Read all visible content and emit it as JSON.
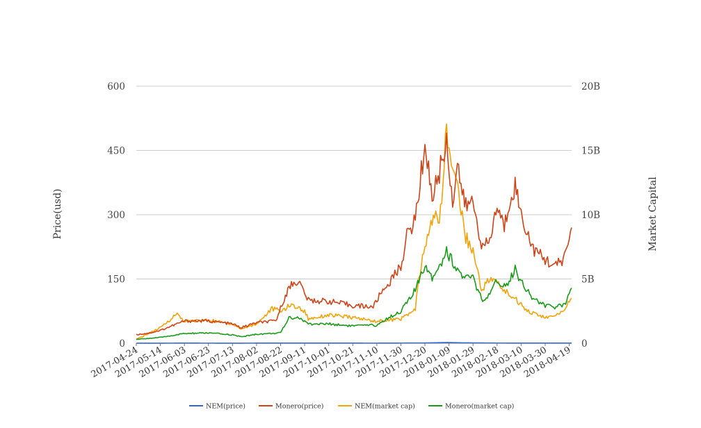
{
  "chart_data": {
    "type": "line",
    "y_left_label": "Price(usd)",
    "y_right_label": "Market Capital",
    "y_left_ticks": [
      "0",
      "150",
      "300",
      "450",
      "600"
    ],
    "y_right_ticks": [
      "0",
      "5B",
      "10B",
      "15B",
      "20B"
    ],
    "ylim_left": [
      0,
      600
    ],
    "ylim_right": [
      0,
      20000000000
    ],
    "x_ticks": [
      "2017-04-24",
      "2017-05-14",
      "2017-06-03",
      "2017-06-23",
      "2017-07-13",
      "2017-08-02",
      "2017-08-22",
      "2017-09-11",
      "2017-10-01",
      "2017-10-21",
      "2017-11-10",
      "2017-11-30",
      "2017-12-20",
      "2018-01-09",
      "2018-01-29",
      "2018-02-18",
      "2018-03-10",
      "2018-03-30",
      "2018-04-19"
    ],
    "x_start": "2017-04-24",
    "x_end": "2018-04-21",
    "grid": true,
    "legend_position": "bottom",
    "colors": {
      "nem_price": "#3366cc",
      "monero_price": "#cc4419",
      "nem_cap": "#f0a30a",
      "monero_cap": "#1a9a1a"
    },
    "series": [
      {
        "name": "NEM(price)",
        "axis": "left",
        "color": "#3366cc",
        "points": [
          [
            "2017-04-24",
            0.02
          ],
          [
            "2017-05-20",
            0.2
          ],
          [
            "2017-06-03",
            0.25
          ],
          [
            "2017-07-13",
            0.15
          ],
          [
            "2017-08-22",
            0.3
          ],
          [
            "2017-09-11",
            0.3
          ],
          [
            "2017-11-10",
            0.2
          ],
          [
            "2017-12-20",
            0.6
          ],
          [
            "2018-01-07",
            1.7
          ],
          [
            "2018-01-20",
            1.0
          ],
          [
            "2018-02-18",
            0.4
          ],
          [
            "2018-03-10",
            0.35
          ],
          [
            "2018-04-21",
            0.33
          ]
        ]
      },
      {
        "name": "Monero(price)",
        "axis": "left",
        "color": "#cc4419",
        "points": [
          [
            "2017-04-24",
            20
          ],
          [
            "2017-05-05",
            24
          ],
          [
            "2017-05-14",
            30
          ],
          [
            "2017-06-03",
            52
          ],
          [
            "2017-06-23",
            52
          ],
          [
            "2017-07-13",
            45
          ],
          [
            "2017-07-20",
            36
          ],
          [
            "2017-08-02",
            48
          ],
          [
            "2017-08-18",
            52
          ],
          [
            "2017-08-26",
            112
          ],
          [
            "2017-08-31",
            138
          ],
          [
            "2017-09-06",
            145
          ],
          [
            "2017-09-14",
            100
          ],
          [
            "2017-10-01",
            98
          ],
          [
            "2017-10-21",
            88
          ],
          [
            "2017-11-07",
            85
          ],
          [
            "2017-11-14",
            120
          ],
          [
            "2017-11-20",
            140
          ],
          [
            "2017-11-30",
            180
          ],
          [
            "2017-12-05",
            250
          ],
          [
            "2017-12-12",
            290
          ],
          [
            "2017-12-18",
            420
          ],
          [
            "2017-12-20",
            470
          ],
          [
            "2017-12-26",
            340
          ],
          [
            "2018-01-01",
            400
          ],
          [
            "2018-01-07",
            470
          ],
          [
            "2018-01-12",
            330
          ],
          [
            "2018-01-16",
            420
          ],
          [
            "2018-01-22",
            320
          ],
          [
            "2018-01-29",
            330
          ],
          [
            "2018-02-06",
            220
          ],
          [
            "2018-02-12",
            240
          ],
          [
            "2018-02-18",
            320
          ],
          [
            "2018-02-24",
            270
          ],
          [
            "2018-03-01",
            340
          ],
          [
            "2018-03-05",
            370
          ],
          [
            "2018-03-10",
            300
          ],
          [
            "2018-03-20",
            220
          ],
          [
            "2018-03-30",
            195
          ],
          [
            "2018-04-08",
            180
          ],
          [
            "2018-04-15",
            200
          ],
          [
            "2018-04-21",
            270
          ]
        ]
      },
      {
        "name": "NEM(market cap)",
        "axis": "right",
        "color": "#f0a30a",
        "points": [
          [
            "2017-04-24",
            300000000
          ],
          [
            "2017-05-14",
            1200000000
          ],
          [
            "2017-05-28",
            2300000000
          ],
          [
            "2017-06-03",
            1700000000
          ],
          [
            "2017-06-23",
            1800000000
          ],
          [
            "2017-07-13",
            1500000000
          ],
          [
            "2017-07-20",
            1100000000
          ],
          [
            "2017-08-02",
            1500000000
          ],
          [
            "2017-08-15",
            2700000000
          ],
          [
            "2017-08-22",
            2500000000
          ],
          [
            "2017-08-31",
            3000000000
          ],
          [
            "2017-09-11",
            2500000000
          ],
          [
            "2017-09-14",
            1900000000
          ],
          [
            "2017-10-01",
            2200000000
          ],
          [
            "2017-10-21",
            2000000000
          ],
          [
            "2017-11-10",
            1700000000
          ],
          [
            "2017-11-30",
            1900000000
          ],
          [
            "2017-12-12",
            2600000000
          ],
          [
            "2017-12-15",
            5000000000
          ],
          [
            "2017-12-20",
            7500000000
          ],
          [
            "2017-12-26",
            9500000000
          ],
          [
            "2018-01-03",
            10200000000
          ],
          [
            "2018-01-06",
            16800000000
          ],
          [
            "2018-01-10",
            14500000000
          ],
          [
            "2018-01-16",
            12500000000
          ],
          [
            "2018-01-22",
            8500000000
          ],
          [
            "2018-01-29",
            7200000000
          ],
          [
            "2018-02-05",
            4200000000
          ],
          [
            "2018-02-12",
            5000000000
          ],
          [
            "2018-02-18",
            4700000000
          ],
          [
            "2018-02-25",
            4000000000
          ],
          [
            "2018-03-05",
            3500000000
          ],
          [
            "2018-03-10",
            3000000000
          ],
          [
            "2018-03-18",
            2400000000
          ],
          [
            "2018-03-30",
            2000000000
          ],
          [
            "2018-04-08",
            2100000000
          ],
          [
            "2018-04-15",
            2700000000
          ],
          [
            "2018-04-21",
            3500000000
          ]
        ]
      },
      {
        "name": "Monero(market cap)",
        "axis": "right",
        "color": "#1a9a1a",
        "points": [
          [
            "2017-04-24",
            300000000
          ],
          [
            "2017-05-14",
            450000000
          ],
          [
            "2017-06-03",
            750000000
          ],
          [
            "2017-06-23",
            800000000
          ],
          [
            "2017-07-13",
            650000000
          ],
          [
            "2017-07-20",
            500000000
          ],
          [
            "2017-08-02",
            700000000
          ],
          [
            "2017-08-22",
            800000000
          ],
          [
            "2017-08-29",
            2000000000
          ],
          [
            "2017-09-06",
            2000000000
          ],
          [
            "2017-09-14",
            1500000000
          ],
          [
            "2017-10-01",
            1500000000
          ],
          [
            "2017-10-21",
            1350000000
          ],
          [
            "2017-11-10",
            1400000000
          ],
          [
            "2017-11-20",
            2000000000
          ],
          [
            "2017-11-30",
            2500000000
          ],
          [
            "2017-12-10",
            3800000000
          ],
          [
            "2017-12-18",
            5400000000
          ],
          [
            "2017-12-20",
            6200000000
          ],
          [
            "2017-12-26",
            5200000000
          ],
          [
            "2018-01-01",
            6000000000
          ],
          [
            "2018-01-07",
            7200000000
          ],
          [
            "2018-01-14",
            6000000000
          ],
          [
            "2018-01-22",
            5000000000
          ],
          [
            "2018-01-29",
            5100000000
          ],
          [
            "2018-02-06",
            3200000000
          ],
          [
            "2018-02-12",
            3700000000
          ],
          [
            "2018-02-18",
            4900000000
          ],
          [
            "2018-02-25",
            4400000000
          ],
          [
            "2018-03-05",
            5800000000
          ],
          [
            "2018-03-10",
            4800000000
          ],
          [
            "2018-03-20",
            3500000000
          ],
          [
            "2018-03-30",
            2900000000
          ],
          [
            "2018-04-08",
            2800000000
          ],
          [
            "2018-04-15",
            3000000000
          ],
          [
            "2018-04-21",
            4300000000
          ]
        ]
      }
    ]
  }
}
